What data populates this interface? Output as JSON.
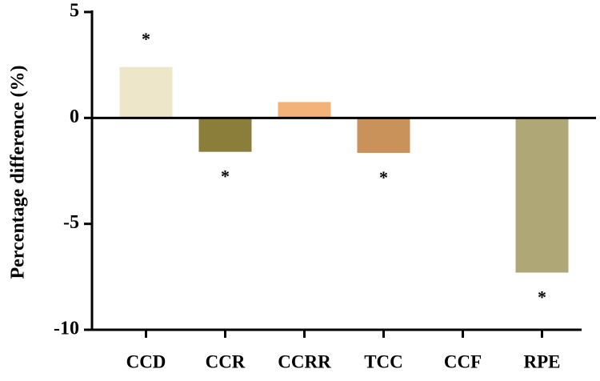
{
  "chart_data": {
    "type": "bar",
    "y_label": "Percentage difference (%)",
    "categories": [
      "CCD",
      "CCR",
      "CCRR",
      "TCC",
      "CCF",
      "RPE"
    ],
    "values": [
      2.4,
      -1.6,
      0.75,
      -1.65,
      0,
      -7.3
    ],
    "colors": [
      "#ede6c8",
      "#8b7d3a",
      "#f2b27a",
      "#c8925a",
      "#e6e0c8",
      "#b0a777"
    ],
    "significance": [
      "*",
      "*",
      null,
      "*",
      null,
      "*"
    ],
    "ylim": [
      -10,
      5
    ],
    "yticks": [
      5,
      0,
      -5,
      -10
    ]
  }
}
